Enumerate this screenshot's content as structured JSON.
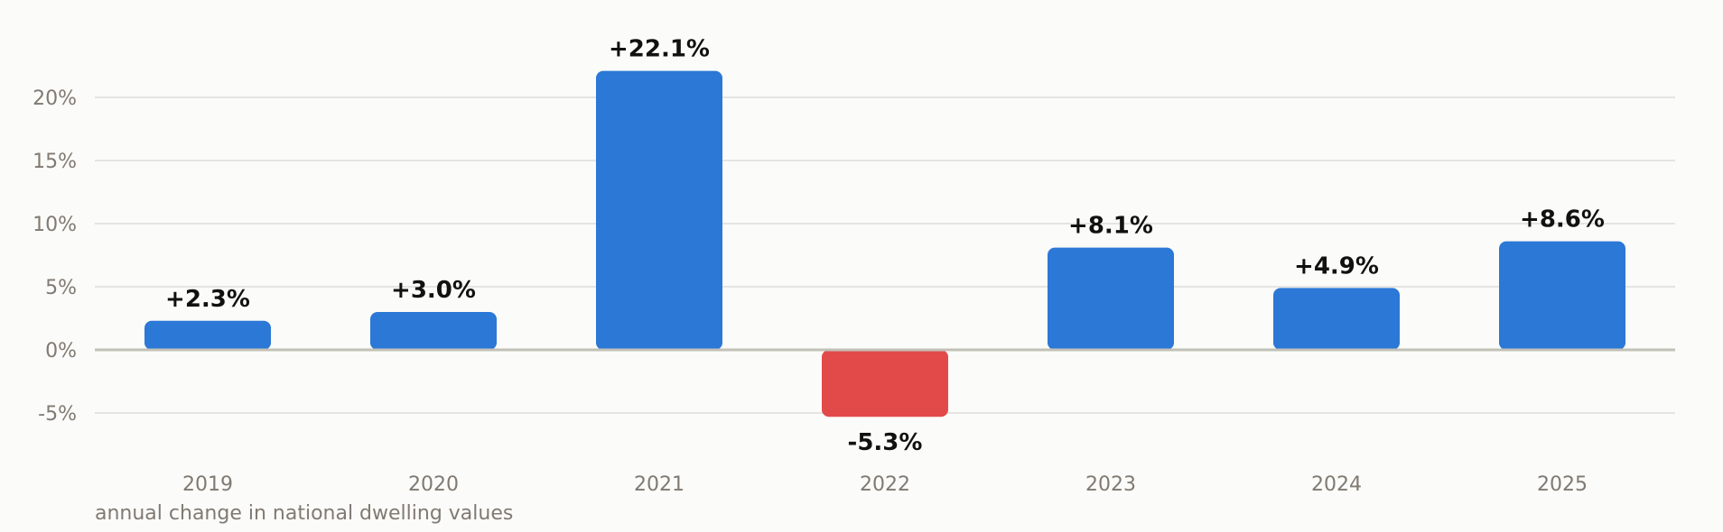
{
  "chart_data": {
    "type": "bar",
    "categories": [
      "2019",
      "2020",
      "2021",
      "2022",
      "2023",
      "2024",
      "2025"
    ],
    "values": [
      2.3,
      3.0,
      22.1,
      -5.3,
      8.1,
      4.9,
      8.6
    ],
    "data_labels": [
      "+2.3%",
      "+3.0%",
      "+22.1%",
      "-5.3%",
      "+8.1%",
      "+4.9%",
      "+8.6%"
    ],
    "yticks": [
      -5,
      0,
      5,
      10,
      15,
      20
    ],
    "ytick_labels": [
      "-5%",
      "0%",
      "5%",
      "10%",
      "15%",
      "20%"
    ],
    "ylim": [
      -8,
      24
    ],
    "grid": true,
    "caption": "annual change in national dwelling values",
    "colors": {
      "positive": "#2b78d6",
      "negative": "#e24a4a",
      "grid": "#dedddb",
      "zero_line": "#c2c1b8"
    }
  }
}
